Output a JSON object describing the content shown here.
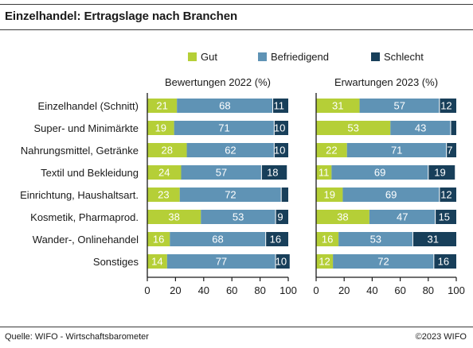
{
  "title": "Einzelhandel: Ertragslage nach Branchen",
  "source": "Quelle: WIFO - Wirtschaftsbarometer",
  "copyright": "©2023 WIFO",
  "colors": {
    "gut": "#b5cf37",
    "befriedigend": "#5f93b5",
    "schlecht": "#183f5a",
    "separator": "#1a1a1a",
    "text": "#1a1a1a"
  },
  "chart_data": [
    {
      "type": "bar",
      "stacked": "horizontal",
      "title": "Bewertungen 2022 (%)",
      "categories": [
        "Einzelhandel (Schnitt)",
        "Super- und Minimärkte",
        "Nahrungsmittel, Getränke",
        "Textil und Bekleidung",
        "Einrichtung, Haushaltsart.",
        "Kosmetik, Pharmaprod.",
        "Wander-, Onlinehandel",
        "Sonstiges"
      ],
      "series": [
        {
          "name": "Gut",
          "values": [
            21,
            19,
            28,
            24,
            23,
            38,
            16,
            14
          ],
          "labels": [
            "21",
            "19",
            "28",
            "24",
            "23",
            "38",
            "16",
            "14"
          ]
        },
        {
          "name": "Befriedigend",
          "values": [
            68,
            71,
            62,
            57,
            72,
            53,
            68,
            77
          ],
          "labels": [
            "68",
            "71",
            "62",
            "57",
            "72",
            "53",
            "68",
            "77"
          ]
        },
        {
          "name": "Schlecht",
          "values": [
            11,
            10,
            10,
            18,
            5,
            9,
            16,
            10
          ],
          "labels": [
            "11",
            "10",
            "10",
            "18",
            "",
            "9",
            "16",
            "10"
          ]
        }
      ],
      "xlim": [
        0,
        100
      ],
      "xticks": [
        "0",
        "20",
        "40",
        "60",
        "80",
        "100"
      ],
      "legend": "top",
      "grid": false
    },
    {
      "type": "bar",
      "stacked": "horizontal",
      "title": "Erwartungen 2023 (%)",
      "categories": [
        "Einzelhandel (Schnitt)",
        "Super- und Minimärkte",
        "Nahrungsmittel, Getränke",
        "Textil und Bekleidung",
        "Einrichtung, Haushaltsart.",
        "Kosmetik, Pharmaprod.",
        "Wander-, Onlinehandel",
        "Sonstiges"
      ],
      "series": [
        {
          "name": "Gut",
          "values": [
            31,
            53,
            22,
            11,
            19,
            38,
            16,
            12
          ],
          "labels": [
            "31",
            "53",
            "22",
            "11",
            "19",
            "38",
            "16",
            "12"
          ]
        },
        {
          "name": "Befriedigend",
          "values": [
            57,
            43,
            71,
            69,
            69,
            47,
            53,
            72
          ],
          "labels": [
            "57",
            "43",
            "71",
            "69",
            "69",
            "47",
            "53",
            "72"
          ]
        },
        {
          "name": "Schlecht",
          "values": [
            12,
            4,
            7,
            19,
            12,
            15,
            31,
            16
          ],
          "labels": [
            "12",
            "",
            "7",
            "19",
            "12",
            "15",
            "31",
            "16"
          ]
        }
      ],
      "xlim": [
        0,
        100
      ],
      "xticks": [
        "0",
        "20",
        "40",
        "60",
        "80",
        "100"
      ],
      "legend": "top",
      "grid": false
    }
  ]
}
